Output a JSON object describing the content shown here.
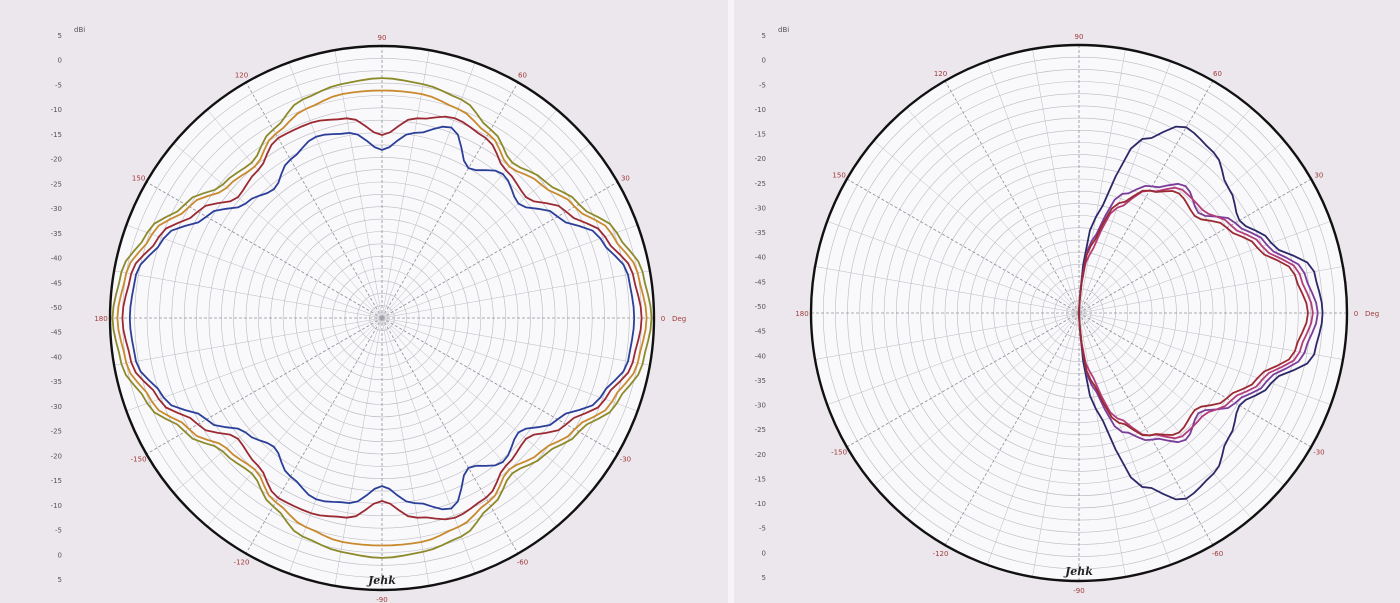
{
  "colors": {
    "background": "#ece7ec",
    "plot_fill": "#f9f9fb",
    "outer_ring": "#111111",
    "grid": "#b9b9c1",
    "angle_label": "#a03c3c",
    "blue": "#2b3f99",
    "red": "#9b2a33",
    "olive": "#8c8a2a",
    "orange": "#c98a2e",
    "navy": "#2d2868",
    "purple": "#7a3d9a",
    "magenta": "#b43c7a"
  },
  "chart_data": [
    {
      "type": "polar-line",
      "title": "",
      "unit_label": "dBi",
      "angle_unit_label": "Deg",
      "corner_label": "Jehk",
      "radial_ticks": [
        "5",
        "0",
        "-5",
        "-10",
        "-15",
        "-20",
        "-25",
        "-30",
        "-35",
        "-40",
        "-45",
        "-50",
        "-45",
        "-40",
        "-35",
        "-30",
        "-25",
        "-20",
        "-15",
        "-10",
        "-5",
        "0",
        "5"
      ],
      "angle_ticks": [
        {
          "angle": 90,
          "label": "90"
        },
        {
          "angle": 60,
          "label": "60"
        },
        {
          "angle": 30,
          "label": "30"
        },
        {
          "angle": 0,
          "label": "0"
        },
        {
          "angle": -30,
          "label": "-30"
        },
        {
          "angle": -60,
          "label": "-60"
        },
        {
          "angle": -90,
          "label": "-90"
        },
        {
          "angle": -120,
          "label": "-120"
        },
        {
          "angle": -150,
          "label": "-150"
        },
        {
          "angle": 180,
          "label": "180"
        },
        {
          "angle": 150,
          "label": "150"
        },
        {
          "angle": 120,
          "label": "120"
        }
      ],
      "rlim": [
        -50,
        5
      ],
      "grid": true,
      "series": [
        {
          "color_key": "olive",
          "angles": [
            0,
            10,
            20,
            30,
            40,
            50,
            60,
            70,
            80,
            90,
            100,
            110,
            120,
            130,
            140,
            150,
            160,
            170,
            180,
            190,
            200,
            210,
            220,
            230,
            240,
            250,
            260,
            270,
            280,
            290,
            300,
            310,
            320,
            330,
            340,
            350,
            360
          ],
          "values": [
            4.5,
            3.5,
            0.5,
            -4,
            -7,
            -9,
            -6,
            -3,
            -2,
            -1.5,
            -2,
            -3,
            -6,
            -9,
            -8,
            -4,
            0.5,
            3.5,
            4.5,
            3.5,
            0.5,
            -4,
            -8,
            -9,
            -6,
            -3,
            -2,
            -1.5,
            -2,
            -3,
            -6,
            -9,
            -7,
            -4,
            0.5,
            3.5,
            4.5
          ]
        },
        {
          "color_key": "orange",
          "angles": [
            0,
            10,
            20,
            30,
            40,
            50,
            60,
            70,
            80,
            90,
            100,
            110,
            120,
            130,
            140,
            150,
            160,
            170,
            180,
            190,
            200,
            210,
            220,
            230,
            240,
            250,
            260,
            270,
            280,
            290,
            300,
            310,
            320,
            330,
            340,
            350,
            360
          ],
          "values": [
            3.5,
            2.5,
            -0.5,
            -5,
            -8,
            -10,
            -7,
            -5,
            -4,
            -4,
            -4,
            -5,
            -7,
            -10,
            -9,
            -5,
            -0.5,
            2.5,
            3.5,
            2.5,
            -0.5,
            -5,
            -9,
            -10,
            -7,
            -5,
            -4,
            -4,
            -4,
            -5,
            -7,
            -10,
            -8,
            -5,
            -0.5,
            2.5,
            3.5
          ]
        },
        {
          "color_key": "red",
          "angles": [
            0,
            10,
            20,
            30,
            40,
            50,
            60,
            70,
            80,
            90,
            100,
            110,
            120,
            130,
            140,
            150,
            160,
            170,
            180,
            190,
            200,
            210,
            220,
            230,
            240,
            250,
            260,
            270,
            280,
            290,
            300,
            310,
            320,
            330,
            340,
            350,
            360
          ],
          "values": [
            2.5,
            1.5,
            -2,
            -7,
            -12,
            -11,
            -8,
            -7,
            -9,
            -13,
            -9,
            -8,
            -8,
            -11,
            -12,
            -7,
            -2,
            1.5,
            2.5,
            1.5,
            -2,
            -7,
            -12,
            -11,
            -8,
            -8,
            -9,
            -13,
            -9,
            -7,
            -8,
            -11,
            -12,
            -7,
            -2,
            1.5,
            2.5
          ]
        },
        {
          "color_key": "blue",
          "angles": [
            0,
            10,
            20,
            30,
            40,
            50,
            60,
            70,
            80,
            90,
            100,
            110,
            120,
            130,
            140,
            150,
            160,
            170,
            180,
            190,
            200,
            210,
            220,
            230,
            240,
            250,
            260,
            270,
            280,
            290,
            300,
            310,
            320,
            330,
            340,
            350,
            360
          ],
          "values": [
            1,
            0.5,
            -3,
            -9,
            -14,
            -12,
            -15,
            -9,
            -12,
            -16,
            -12,
            -11,
            -13,
            -16,
            -14,
            -9,
            -3,
            0.5,
            1,
            0.5,
            -3,
            -9,
            -14,
            -16,
            -13,
            -11,
            -12,
            -16,
            -12,
            -9,
            -15,
            -12,
            -14,
            -9,
            -3,
            0.5,
            1
          ]
        }
      ]
    },
    {
      "type": "polar-line",
      "title": "",
      "unit_label": "dBi",
      "angle_unit_label": "Deg",
      "corner_label": "Jehk",
      "radial_ticks": [
        "5",
        "0",
        "-5",
        "-10",
        "-15",
        "-20",
        "-25",
        "-30",
        "-35",
        "-40",
        "-45",
        "-50",
        "-45",
        "-40",
        "-35",
        "-30",
        "-25",
        "-20",
        "-15",
        "-10",
        "-5",
        "0",
        "5"
      ],
      "angle_ticks": [
        {
          "angle": 90,
          "label": "90"
        },
        {
          "angle": 60,
          "label": "60"
        },
        {
          "angle": 30,
          "label": "30"
        },
        {
          "angle": 0,
          "label": "0"
        },
        {
          "angle": -30,
          "label": "-30"
        },
        {
          "angle": -60,
          "label": "-60"
        },
        {
          "angle": -90,
          "label": "-90"
        },
        {
          "angle": -120,
          "label": "-120"
        },
        {
          "angle": -150,
          "label": "-150"
        },
        {
          "angle": 180,
          "label": "180"
        },
        {
          "angle": 150,
          "label": "150"
        },
        {
          "angle": 120,
          "label": "120"
        }
      ],
      "rlim": [
        -50,
        5
      ],
      "grid": true,
      "series": [
        {
          "color_key": "navy",
          "angles": [
            0,
            10,
            20,
            30,
            40,
            50,
            60,
            70,
            80,
            90,
            100,
            110,
            120,
            130,
            140,
            150,
            160,
            170,
            180,
            190,
            200,
            210,
            220,
            230,
            240,
            250,
            260,
            270,
            280,
            290,
            300,
            310,
            320,
            330,
            340,
            350,
            360
          ],
          "values": [
            0,
            -1,
            -8,
            -12,
            -10,
            -7,
            -6,
            -12,
            -30,
            -50,
            -50,
            -50,
            -50,
            -50,
            -50,
            -50,
            -50,
            -50,
            -50,
            -50,
            -50,
            -50,
            -50,
            -50,
            -50,
            -50,
            -50,
            -50,
            -30,
            -12,
            -6,
            -7,
            -10,
            -12,
            -8,
            -1,
            0
          ]
        },
        {
          "color_key": "purple",
          "angles": [
            0,
            10,
            20,
            30,
            40,
            50,
            60,
            70,
            80,
            90,
            100,
            110,
            120,
            130,
            140,
            150,
            160,
            170,
            180,
            190,
            200,
            210,
            220,
            230,
            240,
            250,
            260,
            270,
            280,
            290,
            300,
            310,
            320,
            330,
            340,
            350,
            360
          ],
          "values": [
            -1,
            -3,
            -9,
            -13,
            -18,
            -16,
            -20,
            -24,
            -35,
            -50,
            -50,
            -50,
            -50,
            -50,
            -50,
            -50,
            -50,
            -50,
            -50,
            -50,
            -50,
            -50,
            -50,
            -50,
            -50,
            -50,
            -50,
            -50,
            -35,
            -24,
            -20,
            -16,
            -18,
            -13,
            -9,
            -3,
            -1
          ]
        },
        {
          "color_key": "magenta",
          "angles": [
            0,
            10,
            20,
            30,
            40,
            50,
            60,
            70,
            80,
            90,
            100,
            110,
            120,
            130,
            140,
            150,
            160,
            170,
            180,
            190,
            200,
            210,
            220,
            230,
            240,
            250,
            260,
            270,
            280,
            290,
            300,
            310,
            320,
            330,
            340,
            350,
            360
          ],
          "values": [
            -2,
            -4,
            -10,
            -14,
            -17,
            -17,
            -21,
            -27,
            -38,
            -50,
            -50,
            -50,
            -50,
            -50,
            -50,
            -50,
            -50,
            -50,
            -50,
            -50,
            -50,
            -50,
            -50,
            -50,
            -50,
            -50,
            -50,
            -50,
            -38,
            -27,
            -21,
            -17,
            -17,
            -14,
            -10,
            -4,
            -2
          ]
        },
        {
          "color_key": "red",
          "angles": [
            0,
            10,
            20,
            30,
            40,
            50,
            60,
            70,
            80,
            90,
            100,
            110,
            120,
            130,
            140,
            150,
            160,
            170,
            180,
            190,
            200,
            210,
            220,
            230,
            240,
            250,
            260,
            270,
            280,
            290,
            300,
            310,
            320,
            330,
            340,
            350,
            360
          ],
          "values": [
            -3,
            -5,
            -11,
            -15,
            -19,
            -18,
            -21,
            -26,
            -36,
            -50,
            -50,
            -50,
            -50,
            -50,
            -50,
            -50,
            -50,
            -50,
            -50,
            -50,
            -50,
            -50,
            -50,
            -50,
            -50,
            -50,
            -50,
            -50,
            -36,
            -26,
            -21,
            -18,
            -19,
            -15,
            -11,
            -5,
            -3
          ]
        }
      ]
    }
  ]
}
